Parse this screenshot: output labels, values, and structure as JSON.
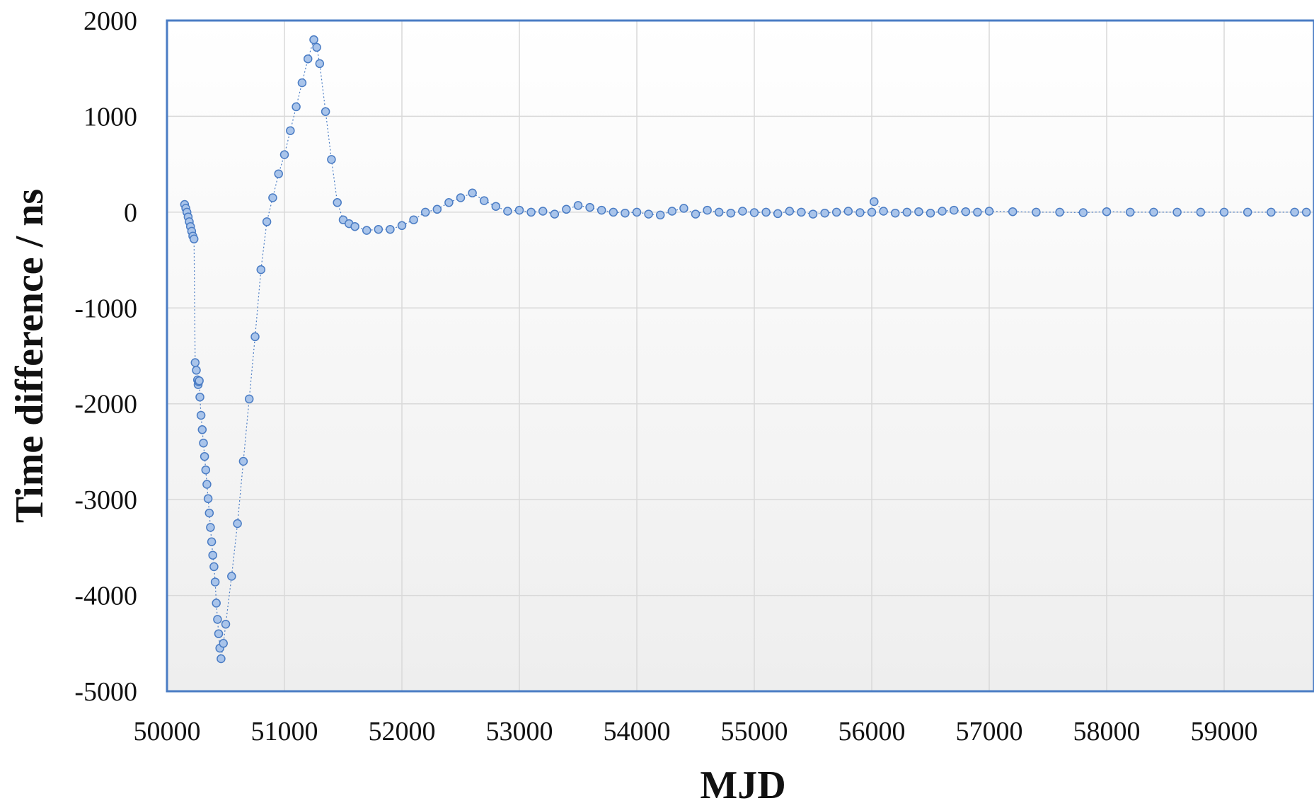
{
  "chart_data": {
    "type": "scatter",
    "title": "",
    "xlabel": "MJD",
    "ylabel": "Time difference / ns",
    "xlim": [
      50000,
      60000
    ],
    "ylim": [
      -5000,
      2000
    ],
    "xticks": [
      "50000",
      "51000",
      "52000",
      "53000",
      "54000",
      "55000",
      "56000",
      "57000",
      "58000",
      "59000"
    ],
    "yticks": [
      "2000",
      "1000",
      "0",
      "-1000",
      "-2000",
      "-3000",
      "-4000",
      "-5000"
    ],
    "grid": true,
    "legend": "none",
    "colors": {
      "marker_fill": "#a9c4ea",
      "marker_stroke": "#4a7cc4",
      "frame": "#4a7cc4",
      "grid": "#d9d9d9"
    },
    "series": [
      {
        "x": [
          50150,
          50160,
          50170,
          50180,
          50190,
          50200,
          50210,
          50220,
          50230,
          50240,
          50250,
          50260,
          50265,
          50270,
          50275,
          50280,
          50290,
          50300,
          50310,
          50320,
          50330,
          50340,
          50350,
          50360,
          50370,
          50380,
          50390,
          50400,
          50410,
          50420,
          50430,
          50440,
          50450,
          50460,
          50480,
          50500,
          50550,
          50600,
          50650,
          50700,
          50750,
          50800,
          50850,
          50900,
          50950,
          51000,
          51050,
          51100,
          51150,
          51200,
          51250,
          51275,
          51300,
          51350,
          51400,
          51450,
          51500,
          51550,
          51600,
          51700,
          51800,
          51900,
          52000,
          52100,
          52200,
          52300,
          52400,
          52500,
          52600,
          52700,
          52800,
          52900,
          53000,
          53100,
          53200,
          53300,
          53400,
          53500,
          53600,
          53700,
          53800,
          53900,
          54000,
          54100,
          54200,
          54300,
          54400,
          54500,
          54600,
          54700,
          54800,
          54900,
          55000,
          55100,
          55200,
          55300,
          55400,
          55500,
          55600,
          55700,
          55800,
          55900,
          56000,
          56020,
          56100,
          56200,
          56300,
          56400,
          56500,
          56600,
          56700,
          56800,
          56900,
          57000,
          57200,
          57400,
          57600,
          57800,
          58000,
          58200,
          58400,
          58600,
          58800,
          59000,
          59200,
          59400,
          59600,
          59700
        ],
        "y": [
          80,
          40,
          0,
          -50,
          -100,
          -150,
          -200,
          -250,
          -280,
          -1570,
          -1650,
          -1750,
          -1800,
          -1770,
          -1760,
          -1930,
          -2120,
          -2270,
          -2410,
          -2550,
          -2690,
          -2840,
          -2990,
          -3140,
          -3290,
          -3440,
          -3580,
          -3700,
          -3860,
          -4080,
          -4250,
          -4400,
          -4550,
          -4660,
          -4500,
          -4300,
          -3800,
          -3250,
          -2600,
          -1950,
          -1300,
          -600,
          -100,
          150,
          400,
          600,
          850,
          1100,
          1350,
          1600,
          1800,
          1720,
          1550,
          1050,
          550,
          100,
          -80,
          -120,
          -150,
          -190,
          -180,
          -180,
          -140,
          -80,
          0,
          30,
          100,
          150,
          200,
          120,
          60,
          10,
          20,
          0,
          10,
          -20,
          30,
          70,
          50,
          20,
          0,
          -10,
          0,
          -20,
          -30,
          10,
          40,
          -20,
          20,
          0,
          -10,
          10,
          -5,
          0,
          -15,
          10,
          0,
          -20,
          -10,
          0,
          10,
          -5,
          0,
          110,
          10,
          -10,
          0,
          5,
          -10,
          10,
          20,
          5,
          0,
          10,
          5,
          0,
          0,
          -5,
          5,
          0,
          0,
          0,
          0,
          0,
          0,
          0,
          0,
          0
        ]
      }
    ]
  }
}
